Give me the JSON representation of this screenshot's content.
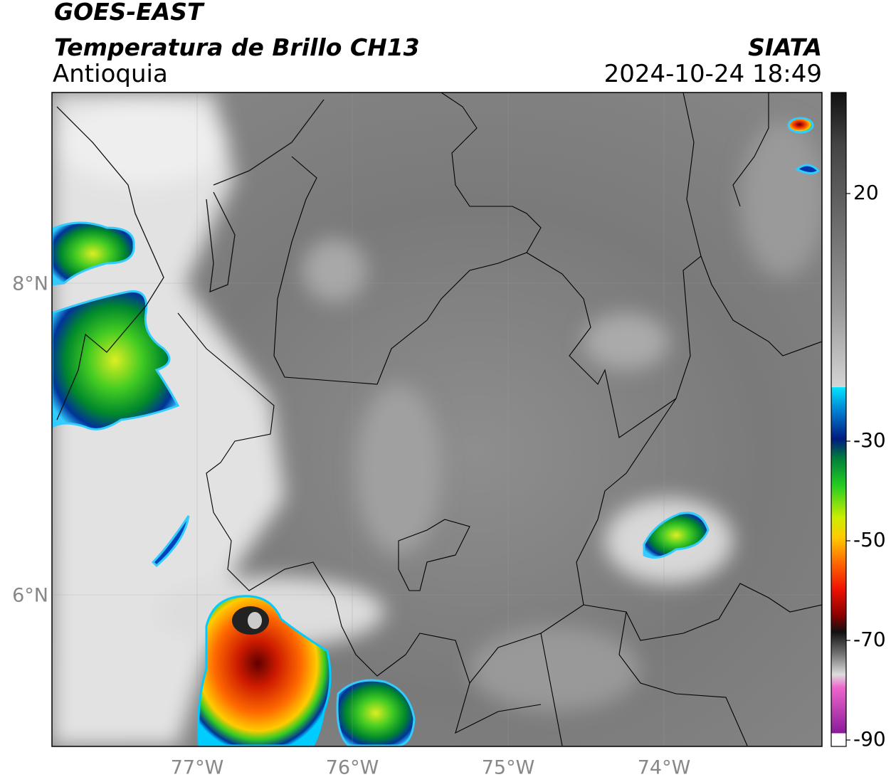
{
  "header": {
    "title": "GOES-EAST",
    "subtitle": "Temperatura de Brillo CH13",
    "region": "Antioquia",
    "source": "SIATA",
    "datetime": "2024-10-24 18:49"
  },
  "map": {
    "lat_ticks": [
      "8°N",
      "6°N"
    ],
    "lon_ticks": [
      "77°W",
      "76°W",
      "75°W",
      "74°W"
    ]
  },
  "colorbar": {
    "ticks": [
      20,
      -30,
      -50,
      -70,
      -90
    ]
  }
}
